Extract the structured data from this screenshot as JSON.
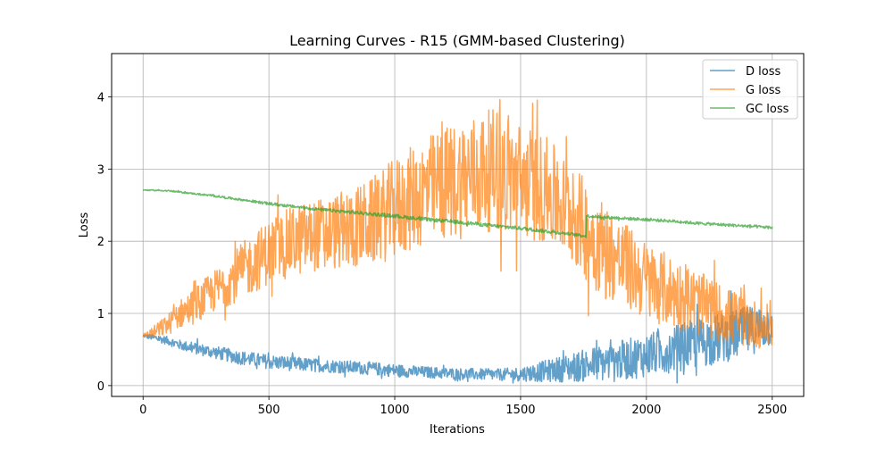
{
  "chart_data": {
    "type": "line",
    "title": "Learning Curves - R15 (GMM-based Clustering)",
    "xlabel": "Iterations",
    "ylabel": "Loss",
    "xlim": [
      -125,
      2625
    ],
    "ylim": [
      -0.15,
      4.6
    ],
    "xticks": [
      0,
      500,
      1000,
      1500,
      2000,
      2500
    ],
    "yticks": [
      0,
      1,
      2,
      3,
      4
    ],
    "grid": true,
    "legend_position": "top-right",
    "series": [
      {
        "name": "D loss",
        "color": "#1f77b4",
        "x": [
          0,
          50,
          100,
          150,
          200,
          300,
          400,
          500,
          600,
          700,
          800,
          900,
          1000,
          1100,
          1200,
          1300,
          1400,
          1500,
          1600,
          1700,
          1800,
          1900,
          2000,
          2100,
          2200,
          2300,
          2400,
          2500
        ],
        "y": [
          0.69,
          0.66,
          0.62,
          0.56,
          0.52,
          0.45,
          0.38,
          0.33,
          0.3,
          0.28,
          0.26,
          0.24,
          0.21,
          0.19,
          0.17,
          0.16,
          0.15,
          0.16,
          0.2,
          0.25,
          0.3,
          0.35,
          0.42,
          0.5,
          0.58,
          0.66,
          0.75,
          0.85
        ],
        "noise": [
          0.02,
          0.05,
          0.06,
          0.07,
          0.08,
          0.09,
          0.1,
          0.1,
          0.1,
          0.09,
          0.09,
          0.09,
          0.09,
          0.08,
          0.08,
          0.08,
          0.08,
          0.1,
          0.15,
          0.2,
          0.25,
          0.28,
          0.3,
          0.32,
          0.35,
          0.35,
          0.35,
          0.3
        ]
      },
      {
        "name": "G loss",
        "color": "#ff7f0e",
        "x": [
          0,
          50,
          100,
          150,
          200,
          300,
          400,
          500,
          600,
          700,
          800,
          900,
          1000,
          1100,
          1200,
          1300,
          1400,
          1500,
          1600,
          1700,
          1800,
          1900,
          2000,
          2100,
          2200,
          2300,
          2400,
          2500
        ],
        "y": [
          0.69,
          0.75,
          0.85,
          1.0,
          1.1,
          1.35,
          1.6,
          1.85,
          2.0,
          2.1,
          2.15,
          2.25,
          2.45,
          2.65,
          2.8,
          2.9,
          3.0,
          2.85,
          2.7,
          2.4,
          2.0,
          1.7,
          1.45,
          1.3,
          1.15,
          1.0,
          0.88,
          0.8
        ],
        "noise": [
          0.02,
          0.1,
          0.15,
          0.2,
          0.25,
          0.3,
          0.4,
          0.45,
          0.5,
          0.5,
          0.55,
          0.6,
          0.7,
          0.75,
          0.8,
          0.85,
          0.85,
          0.8,
          0.75,
          0.7,
          0.7,
          0.6,
          0.55,
          0.5,
          0.45,
          0.4,
          0.35,
          0.3
        ]
      },
      {
        "name": "GC loss",
        "color": "#2ca02c",
        "x": [
          0,
          100,
          200,
          300,
          400,
          500,
          600,
          700,
          800,
          900,
          1000,
          1100,
          1200,
          1300,
          1400,
          1500,
          1600,
          1700,
          1760,
          1761,
          1800,
          1900,
          2000,
          2100,
          2200,
          2300,
          2400,
          2500
        ],
        "y": [
          2.71,
          2.7,
          2.66,
          2.62,
          2.57,
          2.52,
          2.48,
          2.44,
          2.41,
          2.38,
          2.35,
          2.31,
          2.28,
          2.25,
          2.21,
          2.18,
          2.14,
          2.1,
          2.07,
          2.35,
          2.34,
          2.32,
          2.3,
          2.28,
          2.25,
          2.23,
          2.21,
          2.19
        ],
        "noise": [
          0.005,
          0.01,
          0.01,
          0.015,
          0.015,
          0.02,
          0.02,
          0.02,
          0.025,
          0.025,
          0.025,
          0.025,
          0.025,
          0.025,
          0.025,
          0.025,
          0.025,
          0.02,
          0.02,
          0.02,
          0.02,
          0.02,
          0.02,
          0.02,
          0.02,
          0.02,
          0.02,
          0.02
        ]
      }
    ]
  }
}
